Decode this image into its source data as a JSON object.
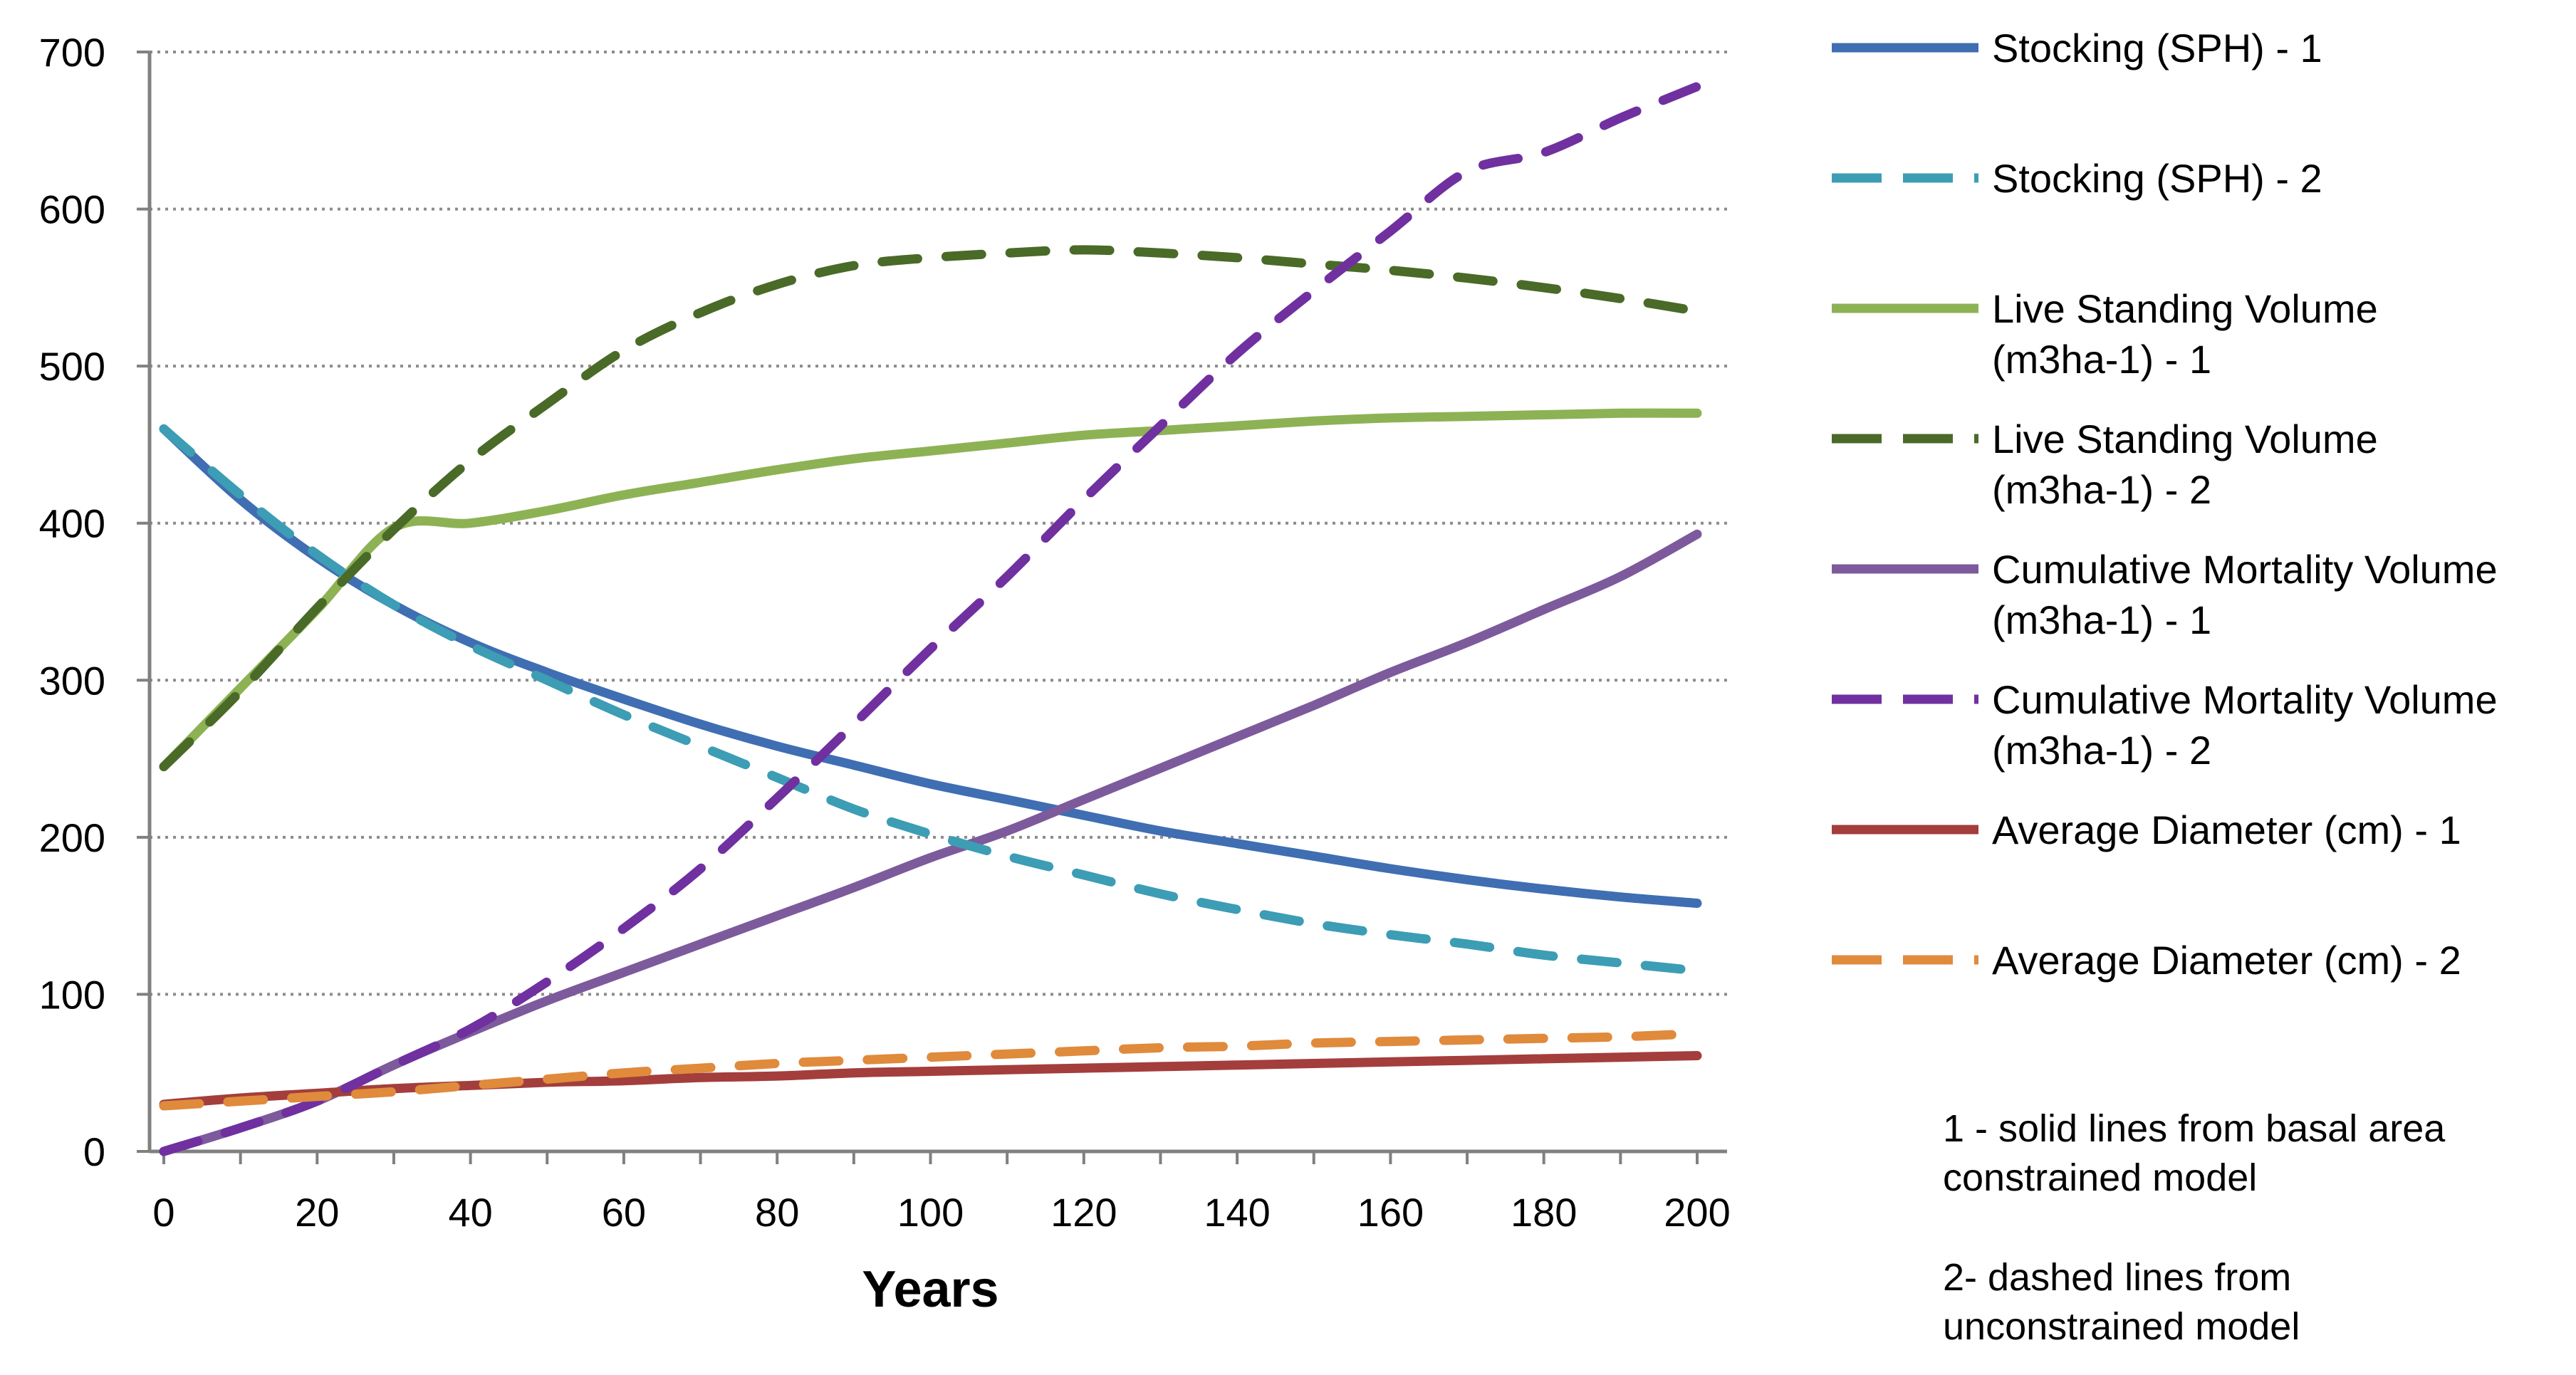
{
  "chart_data": {
    "type": "line",
    "title": "",
    "xlabel": "Years",
    "ylabel": "",
    "xlim": [
      0,
      200
    ],
    "ylim": [
      0,
      700
    ],
    "x_ticks": [
      0,
      20,
      40,
      60,
      80,
      100,
      120,
      140,
      160,
      180,
      200
    ],
    "y_ticks": [
      0,
      100,
      200,
      300,
      400,
      500,
      600,
      700
    ],
    "grid": "horizontal dotted",
    "legend_position": "right",
    "x": [
      0,
      10,
      20,
      30,
      40,
      50,
      60,
      70,
      80,
      90,
      100,
      110,
      120,
      130,
      140,
      150,
      160,
      170,
      180,
      190,
      200
    ],
    "series": [
      {
        "name": "Stocking (SPH) - 1",
        "label_lines": [
          "Stocking (SPH) - 1"
        ],
        "color": "#3f6eb2",
        "style": "solid",
        "values": [
          460,
          415,
          378,
          348,
          324,
          305,
          288,
          272,
          258,
          246,
          234,
          224,
          214,
          204,
          196,
          188,
          180,
          173,
          167,
          162,
          158
        ]
      },
      {
        "name": "Stocking (SPH) - 2",
        "label_lines": [
          "Stocking (SPH) - 2"
        ],
        "color": "#3c9db5",
        "style": "dashed",
        "values": [
          460,
          418,
          380,
          348,
          322,
          300,
          278,
          258,
          238,
          218,
          202,
          188,
          176,
          164,
          154,
          145,
          138,
          132,
          125,
          120,
          115
        ]
      },
      {
        "name": "Live Standing Volume (m3ha-1) - 1",
        "label_lines": [
          "Live Standing Volume",
          "(m3ha-1) - 1"
        ],
        "color": "#8db254",
        "style": "solid",
        "values": [
          245,
          295,
          345,
          397,
          400,
          408,
          418,
          426,
          434,
          441,
          446,
          451,
          456,
          459,
          462,
          465,
          467,
          468,
          469,
          470,
          470
        ]
      },
      {
        "name": "Live Standing Volume (m3ha-1) - 2",
        "label_lines": [
          "Live Standing Volume",
          "(m3ha-1) - 2"
        ],
        "color": "#4a6a28",
        "style": "dashed",
        "values": [
          245,
          293,
          346,
          396,
          440,
          476,
          510,
          534,
          552,
          564,
          569,
          572,
          574,
          572,
          569,
          565,
          561,
          556,
          550,
          543,
          535
        ]
      },
      {
        "name": "Cumulative Mortality Volume (m3ha-1) - 1",
        "label_lines": [
          "Cumulative Mortality Volume",
          "(m3ha-1) - 1"
        ],
        "color": "#7d5a9c",
        "style": "solid",
        "values": [
          0,
          15,
          32,
          55,
          76,
          96,
          114,
          132,
          150,
          168,
          187,
          204,
          224,
          244,
          264,
          284,
          305,
          324,
          345,
          366,
          393
        ]
      },
      {
        "name": "Cumulative Mortality Volume (m3ha-1) - 2",
        "label_lines": [
          "Cumulative Mortality Volume",
          "(m3ha-1) - 2"
        ],
        "color": "#7030a0",
        "style": "dashed",
        "values": [
          0,
          15,
          32,
          55,
          78,
          108,
          142,
          180,
          225,
          272,
          320,
          366,
          415,
          462,
          508,
          548,
          586,
          624,
          636,
          658,
          678
        ]
      },
      {
        "name": "Average Diameter (cm) - 1",
        "label_lines": [
          "Average Diameter (cm) - 1"
        ],
        "color": "#a33e3c",
        "style": "solid",
        "values": [
          30,
          34,
          37,
          40,
          42,
          44,
          45,
          47,
          48,
          50,
          51,
          52,
          53,
          54,
          55,
          56,
          57,
          58,
          59,
          60,
          61
        ]
      },
      {
        "name": "Average Diameter (cm) - 2",
        "label_lines": [
          "Average Diameter (cm) - 2"
        ],
        "color": "#e08a3c",
        "style": "dashed",
        "values": [
          29,
          32,
          35,
          38,
          42,
          46,
          50,
          53,
          56,
          58,
          60,
          62,
          64,
          66,
          67,
          69,
          70,
          71,
          72,
          73,
          75
        ]
      }
    ],
    "notes": [
      [
        "1 - solid lines from basal area",
        "constrained model"
      ],
      [
        "2- dashed lines from",
        "unconstrained model"
      ]
    ]
  }
}
